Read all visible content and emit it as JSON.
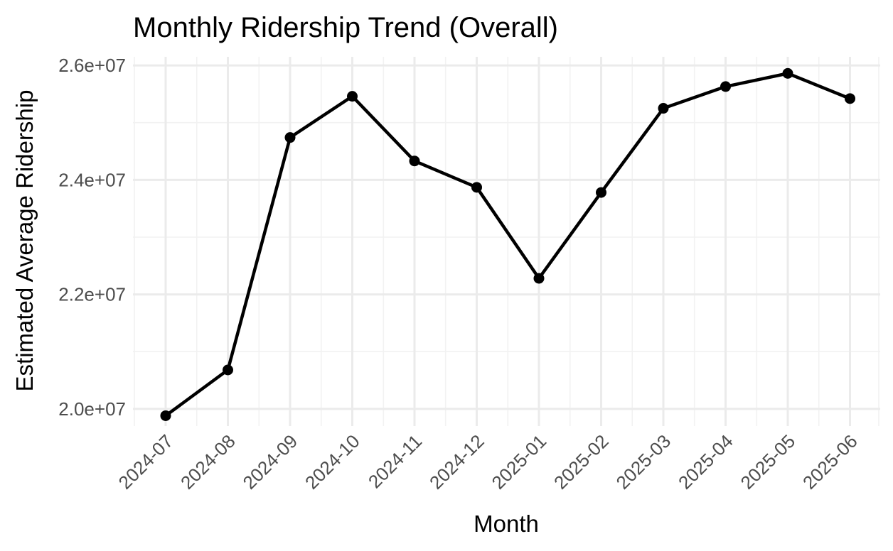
{
  "chart_data": {
    "type": "line",
    "title": "Monthly Ridership Trend (Overall)",
    "xlabel": "Month",
    "ylabel": "Estimated Average Ridership",
    "categories": [
      "2024-07",
      "2024-08",
      "2024-09",
      "2024-10",
      "2024-11",
      "2024-12",
      "2025-01",
      "2025-02",
      "2025-03",
      "2025-04",
      "2025-05",
      "2025-06"
    ],
    "series": [
      {
        "values": [
          19880000,
          20680000,
          24740000,
          25460000,
          24330000,
          23870000,
          22280000,
          23780000,
          25250000,
          25630000,
          25860000,
          25420000
        ]
      }
    ],
    "ylim": [
      19700000,
      26150000
    ],
    "y_ticks": [
      20000000,
      22000000,
      24000000,
      26000000
    ],
    "y_tick_labels": [
      "2.0e+07",
      "2.2e+07",
      "2.4e+07",
      "2.6e+07"
    ],
    "x_tick_rotation_deg": 45,
    "grid": true,
    "legend": "none",
    "colors": {
      "line": "#000000",
      "point": "#000000",
      "grid_major": "#ebebeb",
      "grid_minor": "#f2f2f2",
      "tick_text": "#4d4d4d",
      "background": "#ffffff"
    }
  }
}
